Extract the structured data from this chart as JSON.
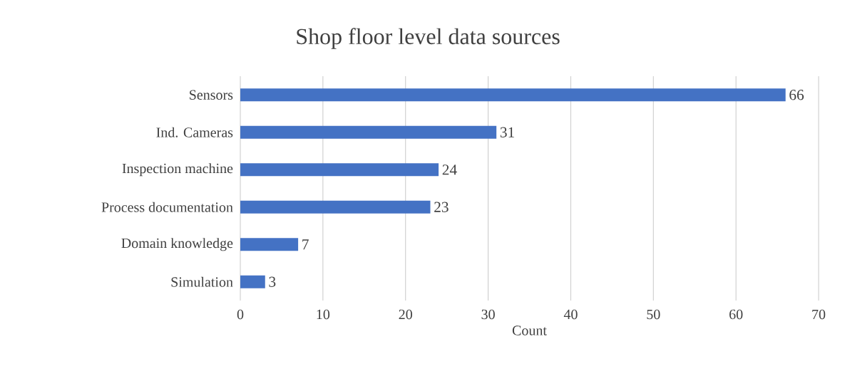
{
  "chart_data": {
    "type": "bar",
    "orientation": "horizontal",
    "title": "Shop floor level data sources",
    "xlabel": "Count",
    "categories": [
      "Sensors",
      "Ind. Cameras",
      "Inspection machine",
      "Process documentation",
      "Domain knowledge",
      "Simulation"
    ],
    "values": [
      66,
      31,
      24,
      23,
      7,
      3
    ],
    "color": "#4472c4",
    "xlim": [
      0,
      70
    ],
    "xticks": [
      0,
      10,
      20,
      30,
      40,
      50,
      60,
      70
    ],
    "grid": "x",
    "data_labels": true
  }
}
